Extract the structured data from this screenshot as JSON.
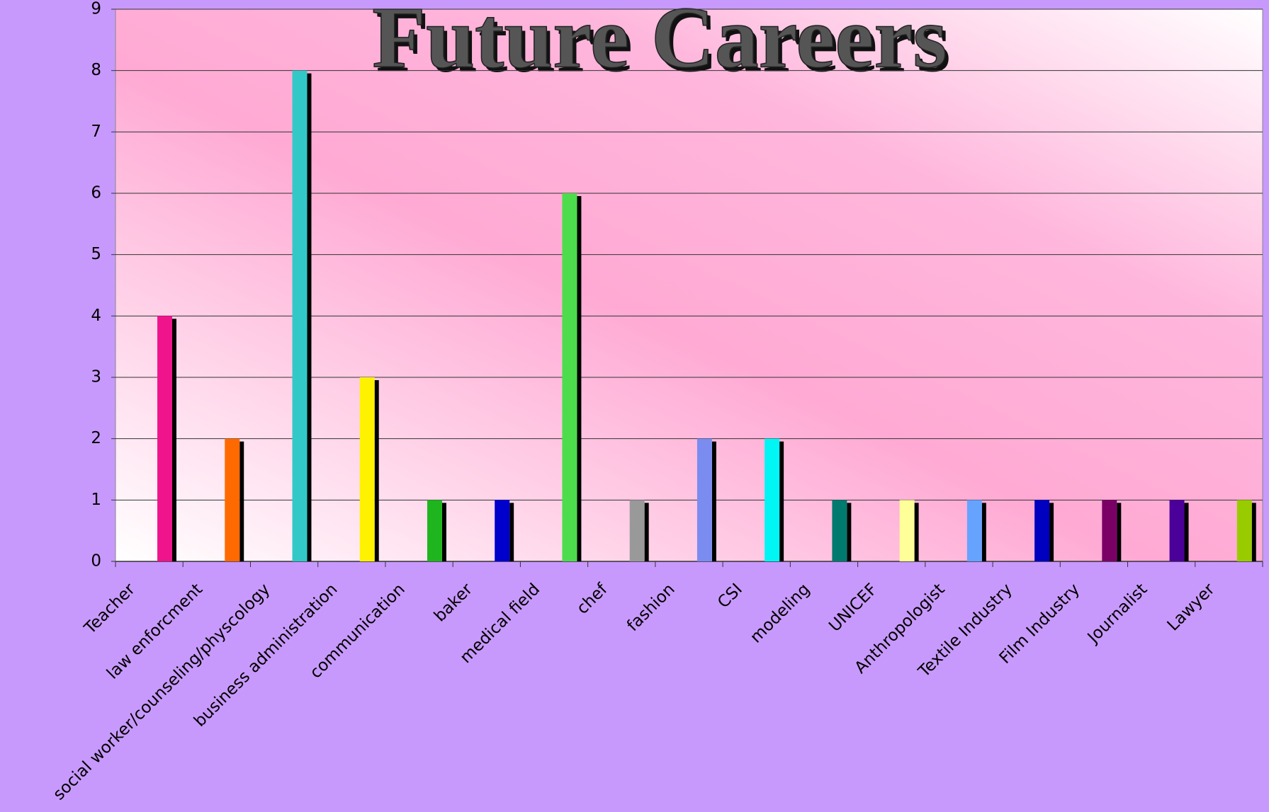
{
  "chart_data": {
    "type": "bar",
    "title": "Future Careers",
    "categories": [
      "Teacher",
      "law enforcment",
      "social worker/counseling/physcology",
      "business administration",
      "communication",
      "baker",
      "medical field",
      "chef",
      "fashion",
      "CSI",
      "modeling",
      "UNICEF",
      "Anthropologist",
      "Textile Industry",
      "Film Industry",
      "Journalist",
      "Lawyer"
    ],
    "values": [
      4,
      2,
      8,
      3,
      1,
      1,
      6,
      1,
      2,
      2,
      1,
      1,
      1,
      1,
      1,
      1,
      1
    ],
    "colors": [
      "#f0148c",
      "#ff6a00",
      "#33c8c8",
      "#fff200",
      "#1fb51f",
      "#0000cc",
      "#4cdc4c",
      "#999999",
      "#7a8cf0",
      "#00f5f5",
      "#007a6e",
      "#ffff99",
      "#66a3ff",
      "#0000c0",
      "#7a0066",
      "#4b0099",
      "#99cc00"
    ],
    "ylim": [
      0,
      9
    ],
    "yticks": [
      0,
      1,
      2,
      3,
      4,
      5,
      6,
      7,
      8,
      9
    ],
    "grid": true
  }
}
